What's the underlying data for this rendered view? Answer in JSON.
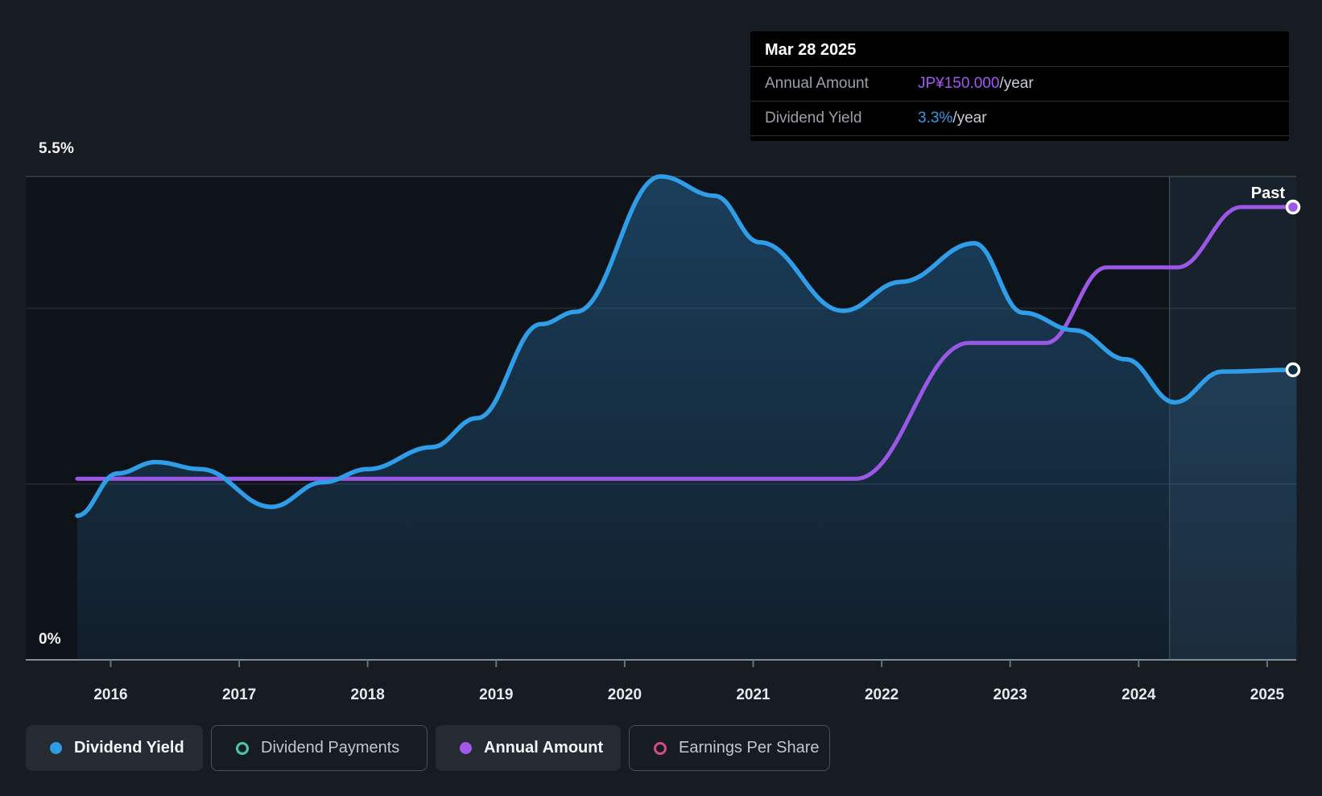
{
  "tooltip": {
    "date": "Mar 28 2025",
    "rows": [
      {
        "label": "Annual Amount",
        "value": "JP¥150.000",
        "suffix": "/year",
        "color": "#A855F7"
      },
      {
        "label": "Dividend Yield",
        "value": "3.3%",
        "suffix": "/year",
        "color": "#2F9DE8"
      }
    ]
  },
  "past_label": "Past",
  "y_axis": {
    "top_label": "5.5%",
    "bottom_label": "0%"
  },
  "chart_data": {
    "type": "line",
    "x_ticks": [
      2016,
      2017,
      2018,
      2019,
      2020,
      2021,
      2022,
      2023,
      2024,
      2025
    ],
    "x_range": [
      2015.74,
      2025.23
    ],
    "yield_axis": {
      "min": 0,
      "max": 5.5,
      "unit": "%",
      "gridlines": [
        2,
        4
      ],
      "top_line": 5.5,
      "tick_labels": [
        "0%",
        "5.5%"
      ]
    },
    "amount_axis": {
      "min": 0,
      "max": 160,
      "unit": "JP¥/year"
    },
    "divider_year": 2024.24,
    "highlight_band": [
      2024.24,
      2025.23
    ],
    "legend_position": "bottom",
    "series": [
      {
        "name": "Dividend Yield",
        "unit": "%",
        "color": "#2F9DE8",
        "fill": true,
        "end_marker": "hollow",
        "points": [
          [
            2015.74,
            1.64
          ],
          [
            2016.05,
            2.12
          ],
          [
            2016.35,
            2.25
          ],
          [
            2016.7,
            2.17
          ],
          [
            2017.25,
            1.74
          ],
          [
            2017.65,
            2.02
          ],
          [
            2018.0,
            2.17
          ],
          [
            2018.5,
            2.42
          ],
          [
            2018.85,
            2.75
          ],
          [
            2019.35,
            3.82
          ],
          [
            2019.62,
            3.96
          ],
          [
            2020.28,
            5.5
          ],
          [
            2020.7,
            5.28
          ],
          [
            2021.05,
            4.75
          ],
          [
            2021.7,
            3.97
          ],
          [
            2022.15,
            4.3
          ],
          [
            2022.72,
            4.74
          ],
          [
            2023.1,
            3.95
          ],
          [
            2023.5,
            3.75
          ],
          [
            2023.9,
            3.42
          ],
          [
            2024.28,
            2.93
          ],
          [
            2024.65,
            3.28
          ],
          [
            2025.23,
            3.3
          ]
        ]
      },
      {
        "name": "Annual Amount",
        "unit": "JP¥/year",
        "color": "#9B57E6",
        "fill": false,
        "end_marker": "filled",
        "points": [
          [
            2015.74,
            60
          ],
          [
            2021.8,
            60
          ],
          [
            2022.68,
            105
          ],
          [
            2023.28,
            105
          ],
          [
            2023.75,
            130
          ],
          [
            2024.3,
            130
          ],
          [
            2024.8,
            150
          ],
          [
            2025.23,
            150
          ]
        ]
      }
    ]
  },
  "legend": [
    {
      "label": "Dividend Yield",
      "color": "#2E9CE2",
      "active": true
    },
    {
      "label": "Dividend Payments",
      "color": "#46C8B2",
      "active": false
    },
    {
      "label": "Annual Amount",
      "color": "#A259E8",
      "active": true
    },
    {
      "label": "Earnings Per Share",
      "color": "#D24C8E",
      "active": false
    }
  ]
}
